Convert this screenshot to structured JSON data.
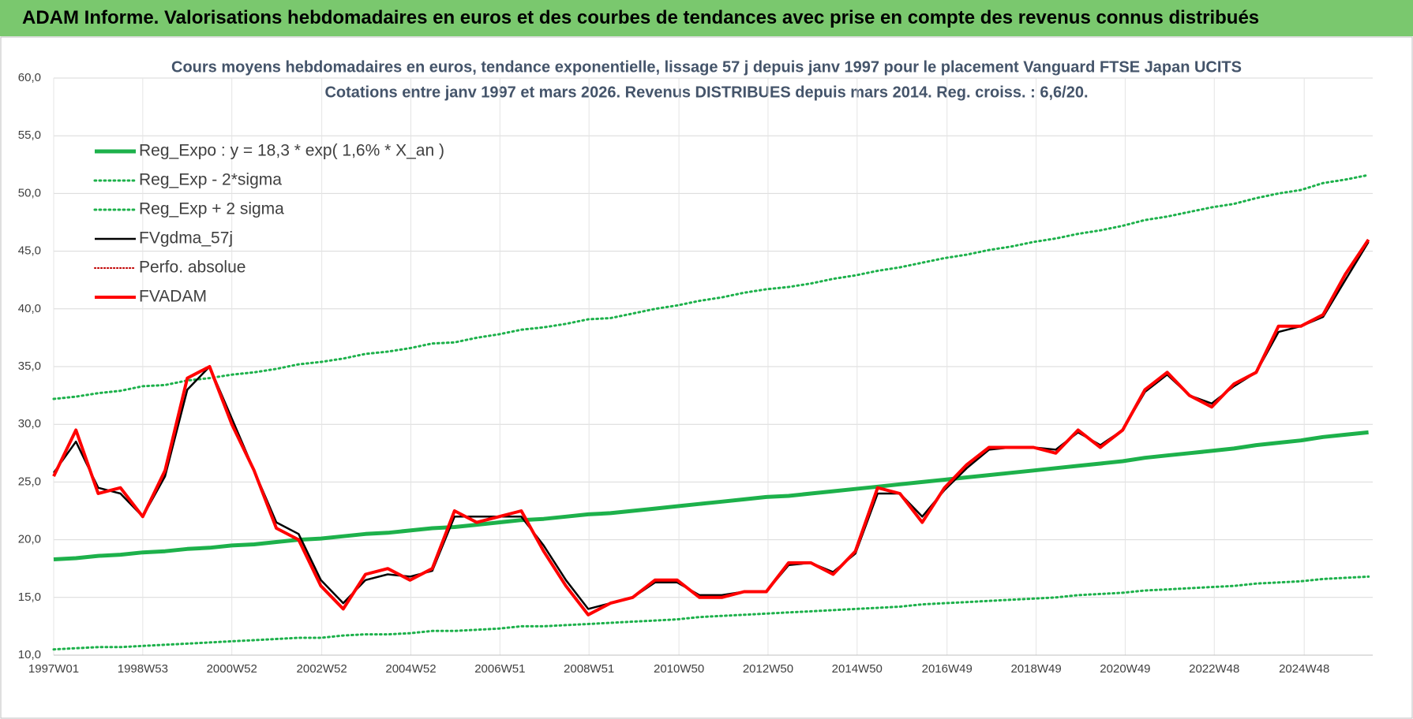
{
  "page_title": "ADAM Informe. Valorisations hebdomadaires en euros et des courbes de tendances avec prise en compte des revenus connus distribués",
  "chart_data": {
    "type": "line",
    "title": "Cours moyens hebdomadaires en euros, tendance exponentielle, lissage 57 j depuis janv 1997 pour le placement Vanguard FTSE Japan UCITS",
    "subtitle": "Cotations entre janv 1997 et mars 2026. Revenus DISTRIBUES depuis mars 2014. Reg. croiss. : 6,6/20.",
    "x": [
      0,
      26,
      52,
      78,
      104,
      130,
      156,
      182,
      208,
      234,
      260,
      286,
      312,
      338,
      364,
      390,
      416,
      442,
      468,
      494,
      520,
      546,
      572,
      598,
      624,
      650,
      676,
      702,
      728,
      754,
      780,
      806,
      832,
      858,
      884,
      910,
      936,
      962,
      988,
      1014,
      1040,
      1066,
      1092,
      1118,
      1144,
      1170,
      1196,
      1222,
      1248,
      1274,
      1300,
      1326,
      1352,
      1378,
      1404,
      1430,
      1456,
      1482,
      1508,
      1535
    ],
    "xlim": [
      0,
      1540
    ],
    "xticks": [
      {
        "value": 0,
        "label": "1997W01"
      },
      {
        "value": 104,
        "label": "1998W53"
      },
      {
        "value": 208,
        "label": "2000W52"
      },
      {
        "value": 313,
        "label": "2002W52"
      },
      {
        "value": 417,
        "label": "2004W52"
      },
      {
        "value": 521,
        "label": "2006W51"
      },
      {
        "value": 625,
        "label": "2008W51"
      },
      {
        "value": 730,
        "label": "2010W50"
      },
      {
        "value": 834,
        "label": "2012W50"
      },
      {
        "value": 938,
        "label": "2014W50"
      },
      {
        "value": 1043,
        "label": "2016W49"
      },
      {
        "value": 1147,
        "label": "2018W49"
      },
      {
        "value": 1251,
        "label": "2020W49"
      },
      {
        "value": 1355,
        "label": "2022W48"
      },
      {
        "value": 1460,
        "label": "2024W48"
      }
    ],
    "ylim": [
      10,
      60
    ],
    "yticks": [
      {
        "value": 10,
        "label": "10,0"
      },
      {
        "value": 15,
        "label": "15,0"
      },
      {
        "value": 20,
        "label": "20,0"
      },
      {
        "value": 25,
        "label": "25,0"
      },
      {
        "value": 30,
        "label": "30,0"
      },
      {
        "value": 35,
        "label": "35,0"
      },
      {
        "value": 40,
        "label": "40,0"
      },
      {
        "value": 45,
        "label": "45,0"
      },
      {
        "value": 50,
        "label": "50,0"
      },
      {
        "value": 55,
        "label": "55,0"
      },
      {
        "value": 60,
        "label": "60,0"
      }
    ],
    "grid": true,
    "legend": "upper left",
    "series": [
      {
        "name": "Reg_Expo : y = 18,3 * exp( 1,6% *  X_an )",
        "color": "#1db14b",
        "dash": "solid",
        "width": 5,
        "values": [
          18.3,
          18.4,
          18.6,
          18.7,
          18.9,
          19.0,
          19.2,
          19.3,
          19.5,
          19.6,
          19.8,
          20.0,
          20.1,
          20.3,
          20.5,
          20.6,
          20.8,
          21.0,
          21.1,
          21.3,
          21.5,
          21.7,
          21.8,
          22.0,
          22.2,
          22.3,
          22.5,
          22.7,
          22.9,
          23.1,
          23.3,
          23.5,
          23.7,
          23.8,
          24.0,
          24.2,
          24.4,
          24.6,
          24.8,
          25.0,
          25.2,
          25.4,
          25.6,
          25.8,
          26.0,
          26.2,
          26.4,
          26.6,
          26.8,
          27.1,
          27.3,
          27.5,
          27.7,
          27.9,
          28.2,
          28.4,
          28.6,
          28.9,
          29.1,
          29.3
        ]
      },
      {
        "name": "Reg_Exp - 2*sigma",
        "color": "#1db14b",
        "dash": "dotted",
        "width": 3,
        "values": [
          10.5,
          10.6,
          10.7,
          10.7,
          10.8,
          10.9,
          11.0,
          11.1,
          11.2,
          11.3,
          11.4,
          11.5,
          11.5,
          11.7,
          11.8,
          11.8,
          11.9,
          12.1,
          12.1,
          12.2,
          12.3,
          12.5,
          12.5,
          12.6,
          12.7,
          12.8,
          12.9,
          13.0,
          13.1,
          13.3,
          13.4,
          13.5,
          13.6,
          13.7,
          13.8,
          13.9,
          14.0,
          14.1,
          14.2,
          14.4,
          14.5,
          14.6,
          14.7,
          14.8,
          14.9,
          15.0,
          15.2,
          15.3,
          15.4,
          15.6,
          15.7,
          15.8,
          15.9,
          16.0,
          16.2,
          16.3,
          16.4,
          16.6,
          16.7,
          16.8
        ]
      },
      {
        "name": "Reg_Exp + 2 sigma",
        "color": "#1db14b",
        "dash": "dotted",
        "width": 3,
        "values": [
          32.2,
          32.4,
          32.7,
          32.9,
          33.3,
          33.4,
          33.8,
          34.0,
          34.3,
          34.5,
          34.8,
          35.2,
          35.4,
          35.7,
          36.1,
          36.3,
          36.6,
          37.0,
          37.1,
          37.5,
          37.8,
          38.2,
          38.4,
          38.7,
          39.1,
          39.2,
          39.6,
          40.0,
          40.3,
          40.7,
          41.0,
          41.4,
          41.7,
          41.9,
          42.2,
          42.6,
          42.9,
          43.3,
          43.6,
          44.0,
          44.4,
          44.7,
          45.1,
          45.4,
          45.8,
          46.1,
          46.5,
          46.8,
          47.2,
          47.7,
          48.0,
          48.4,
          48.8,
          49.1,
          49.6,
          50.0,
          50.3,
          50.9,
          51.2,
          51.6
        ]
      },
      {
        "name": "FVgdma_57j",
        "color": "#000000",
        "dash": "solid",
        "width": 2.5,
        "values": [
          25.8,
          28.5,
          24.5,
          24,
          22,
          25.5,
          33,
          35,
          30.5,
          26,
          21.5,
          20.5,
          16.5,
          14.5,
          16.5,
          17,
          16.8,
          17.3,
          22,
          22,
          22,
          22,
          19.5,
          16.5,
          14,
          14.5,
          15,
          16.3,
          16.3,
          15.2,
          15.2,
          15.5,
          15.5,
          17.8,
          18,
          17.2,
          18.8,
          24,
          24,
          22,
          24.3,
          26.2,
          27.8,
          28,
          28,
          27.8,
          29.3,
          28.2,
          29.5,
          32.8,
          34.3,
          32.5,
          31.8,
          33.3,
          34.5,
          38,
          38.5,
          39.3,
          42.5,
          45.8
        ]
      },
      {
        "name": "Perfo. absolue",
        "color": "#c00000",
        "dash": "dotted",
        "width": 2,
        "values": [
          null,
          null,
          null,
          null,
          null,
          null,
          null,
          null,
          null,
          null,
          null,
          null,
          null,
          null,
          null,
          null,
          null,
          null,
          null,
          null,
          null,
          null,
          null,
          null,
          null,
          null,
          null,
          null,
          null,
          null,
          null,
          null,
          null,
          null,
          null,
          null,
          null,
          null,
          null,
          null,
          null,
          null,
          null,
          null,
          null,
          null,
          null,
          null,
          null,
          null,
          null,
          null,
          null,
          null,
          null,
          null,
          null,
          null,
          null,
          null
        ]
      },
      {
        "name": "FVADAM",
        "color": "#ff0000",
        "dash": "solid",
        "width": 4,
        "values": [
          25.5,
          29.5,
          24,
          24.5,
          22,
          26,
          34,
          35,
          30,
          26,
          21,
          20,
          16,
          14,
          17,
          17.5,
          16.5,
          17.5,
          22.5,
          21.5,
          22,
          22.5,
          19,
          16,
          13.5,
          14.5,
          15,
          16.5,
          16.5,
          15,
          15,
          15.5,
          15.5,
          18,
          18,
          17,
          19,
          24.5,
          24,
          21.5,
          24.5,
          26.5,
          28,
          28,
          28,
          27.5,
          29.5,
          28,
          29.5,
          33,
          34.5,
          32.5,
          31.5,
          33.5,
          34.5,
          38.5,
          38.5,
          39.5,
          43,
          46
        ]
      }
    ]
  }
}
